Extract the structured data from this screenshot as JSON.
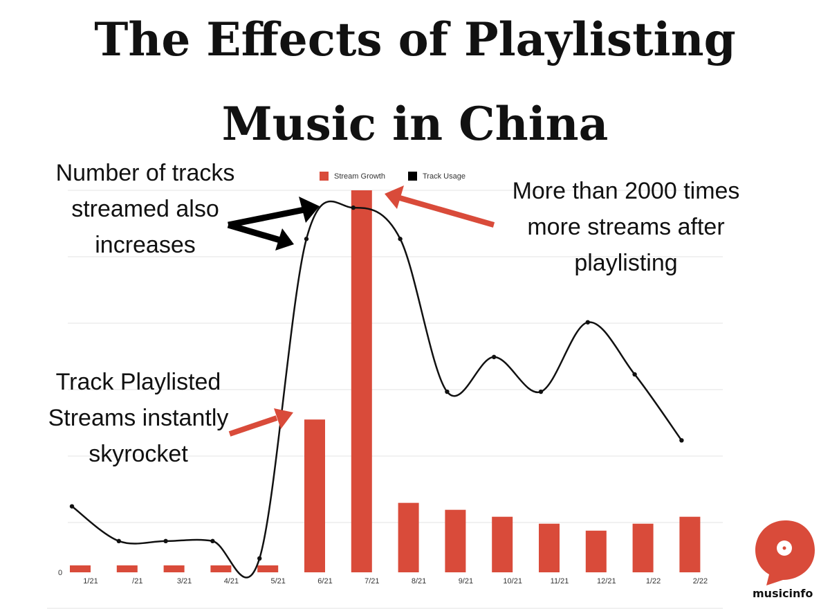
{
  "title": {
    "line1": "The Effects of Playlisting",
    "line2": "Music in China"
  },
  "annotations": {
    "tracks": "Number of tracks streamed also increases",
    "playlisted": "Track Playlisted Streams instantly skyrocket",
    "streams": "More than 2000 times more streams after playlisting"
  },
  "logo": {
    "text": "musicinfo",
    "color": "#d94b3a"
  },
  "colors": {
    "bar": "#d94b3a",
    "line": "#111111",
    "arrow_red": "#d94b3a",
    "arrow_black": "#000000"
  },
  "chart_data": {
    "type": "bar",
    "title": "",
    "xlabel": "",
    "ylabel": "",
    "categories": [
      "1/21",
      "/21",
      "3/21",
      "4/21",
      "5/21",
      "6/21",
      "7/21",
      "8/21",
      "9/21",
      "10/21",
      "11/21",
      "12/21",
      "1/22",
      "2/22"
    ],
    "ylim": [
      0,
      550
    ],
    "y_tick_labels": [
      "0"
    ],
    "grid": true,
    "legend_position": "top-center",
    "series": [
      {
        "name": "Stream Growth",
        "kind": "bar",
        "color": "#d94b3a",
        "values": [
          10,
          10,
          10,
          10,
          10,
          220,
          550,
          100,
          90,
          80,
          70,
          60,
          70,
          80
        ]
      },
      {
        "name": "Track Usage",
        "kind": "line",
        "color": "#111111",
        "values": [
          95,
          45,
          45,
          45,
          20,
          480,
          525,
          480,
          260,
          310,
          260,
          360,
          285,
          190
        ]
      }
    ]
  }
}
